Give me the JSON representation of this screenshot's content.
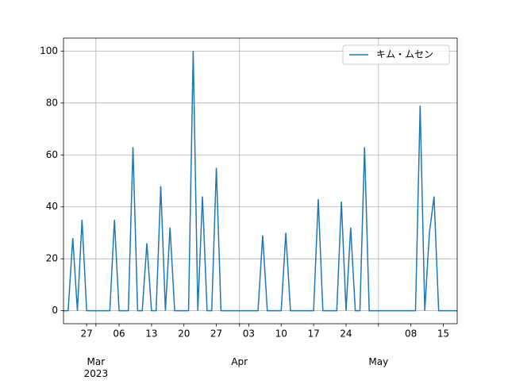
{
  "chart_data": {
    "type": "line",
    "x": [
      "2023-02-22",
      "2023-02-23",
      "2023-02-24",
      "2023-02-25",
      "2023-02-26",
      "2023-02-27",
      "2023-02-28",
      "2023-03-01",
      "2023-03-02",
      "2023-03-03",
      "2023-03-04",
      "2023-03-05",
      "2023-03-06",
      "2023-03-07",
      "2023-03-08",
      "2023-03-09",
      "2023-03-10",
      "2023-03-11",
      "2023-03-12",
      "2023-03-13",
      "2023-03-14",
      "2023-03-15",
      "2023-03-16",
      "2023-03-17",
      "2023-03-18",
      "2023-03-19",
      "2023-03-20",
      "2023-03-21",
      "2023-03-22",
      "2023-03-23",
      "2023-03-24",
      "2023-03-25",
      "2023-03-26",
      "2023-03-27",
      "2023-03-28",
      "2023-03-29",
      "2023-03-30",
      "2023-03-31",
      "2023-04-01",
      "2023-04-02",
      "2023-04-03",
      "2023-04-04",
      "2023-04-05",
      "2023-04-06",
      "2023-04-07",
      "2023-04-08",
      "2023-04-09",
      "2023-04-10",
      "2023-04-11",
      "2023-04-12",
      "2023-04-13",
      "2023-04-14",
      "2023-04-15",
      "2023-04-16",
      "2023-04-17",
      "2023-04-18",
      "2023-04-19",
      "2023-04-20",
      "2023-04-21",
      "2023-04-22",
      "2023-04-23",
      "2023-04-24",
      "2023-04-25",
      "2023-04-26",
      "2023-04-27",
      "2023-04-28",
      "2023-04-29",
      "2023-04-30",
      "2023-05-01",
      "2023-05-02",
      "2023-05-03",
      "2023-05-04",
      "2023-05-05",
      "2023-05-06",
      "2023-05-07",
      "2023-05-08",
      "2023-05-09",
      "2023-05-10",
      "2023-05-11",
      "2023-05-12",
      "2023-05-13",
      "2023-05-14",
      "2023-05-15",
      "2023-05-16",
      "2023-05-17",
      "2023-05-18"
    ],
    "series": [
      {
        "name": "キム・ムセン",
        "color": "#1f77b4",
        "values": [
          0,
          0,
          28,
          0,
          35,
          0,
          0,
          0,
          0,
          0,
          0,
          35,
          0,
          0,
          0,
          63,
          0,
          0,
          26,
          0,
          0,
          48,
          0,
          32,
          0,
          0,
          0,
          0,
          100,
          0,
          44,
          0,
          0,
          55,
          0,
          0,
          0,
          0,
          0,
          0,
          0,
          0,
          0,
          29,
          0,
          0,
          0,
          0,
          30,
          0,
          0,
          0,
          0,
          0,
          0,
          43,
          0,
          0,
          0,
          0,
          42,
          0,
          32,
          0,
          0,
          63,
          0,
          0,
          0,
          0,
          0,
          0,
          0,
          0,
          0,
          0,
          0,
          79,
          0,
          30,
          44,
          0,
          0,
          0,
          0,
          0
        ]
      }
    ],
    "xlim": [
      "2023-02-22",
      "2023-05-18"
    ],
    "xticks": [
      {
        "value": "2023-02-27",
        "label": "27"
      },
      {
        "value": "2023-03-06",
        "label": "06"
      },
      {
        "value": "2023-03-13",
        "label": "13"
      },
      {
        "value": "2023-03-20",
        "label": "20"
      },
      {
        "value": "2023-03-27",
        "label": "27"
      },
      {
        "value": "2023-04-03",
        "label": "03"
      },
      {
        "value": "2023-04-10",
        "label": "10"
      },
      {
        "value": "2023-04-17",
        "label": "17"
      },
      {
        "value": "2023-04-24",
        "label": "24"
      },
      {
        "value": "2023-05-08",
        "label": "08"
      },
      {
        "value": "2023-05-15",
        "label": "15"
      }
    ],
    "xticks_major": [
      {
        "value": "2023-03-01",
        "label": "Mar\n2023"
      },
      {
        "value": "2023-04-01",
        "label": "Apr"
      },
      {
        "value": "2023-05-01",
        "label": "May"
      }
    ],
    "ylim": [
      -5,
      105
    ],
    "yticks": [
      0,
      20,
      40,
      60,
      80,
      100
    ],
    "grid": true,
    "legend": "upper right"
  }
}
